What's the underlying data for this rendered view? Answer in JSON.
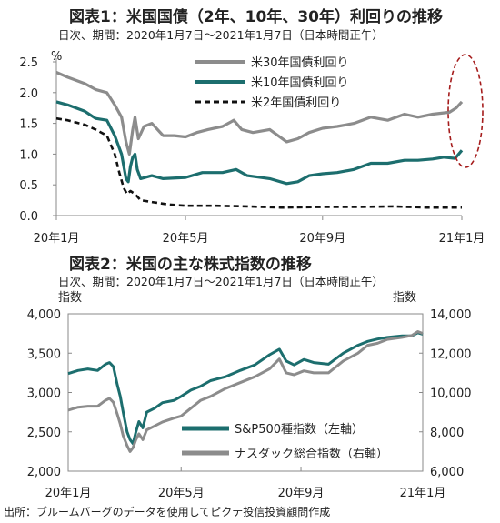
{
  "figure1": {
    "title": "図表1：米国国債（2年、10年、30年）利回りの推移",
    "period": "日次、期間：2020年1月7日～2021年1月7日（日本時間正午）"
  },
  "figure2": {
    "title": "図表2：米国の主な株式指数の推移",
    "period": "日次、期間：2020年1月7日～2021年1月7日（日本時間正午）",
    "left_axis_label": "指数",
    "right_axis_label": "指数"
  },
  "source": "出所：ブルームバーグのデータを使用してピクテ投信投資顧問作成",
  "chart_data": [
    {
      "type": "line",
      "unit": "%",
      "x_tick_labels": [
        "20年1月",
        "20年5月",
        "20年9月",
        "21年1月"
      ],
      "x_ticks_day": [
        0,
        115,
        237,
        361
      ],
      "ylim": [
        0,
        2.5
      ],
      "y_ticks": [
        "0.0",
        "0.5",
        "1.0",
        "1.5",
        "2.0",
        "2.5"
      ],
      "legend_position": "top-right",
      "highlight": "dashed red ellipse around the latest values (Jan 2021)",
      "series": [
        {
          "name": "米30年国債利回り",
          "color": "#8c8c8c",
          "style": "solid",
          "points": [
            [
              0,
              2.33
            ],
            [
              10,
              2.25
            ],
            [
              25,
              2.15
            ],
            [
              35,
              2.05
            ],
            [
              45,
              2.0
            ],
            [
              52,
              1.8
            ],
            [
              58,
              1.6
            ],
            [
              62,
              1.2
            ],
            [
              65,
              1.0
            ],
            [
              68,
              1.4
            ],
            [
              70,
              1.6
            ],
            [
              73,
              1.25
            ],
            [
              78,
              1.45
            ],
            [
              85,
              1.5
            ],
            [
              95,
              1.3
            ],
            [
              105,
              1.3
            ],
            [
              115,
              1.28
            ],
            [
              125,
              1.35
            ],
            [
              135,
              1.4
            ],
            [
              148,
              1.45
            ],
            [
              158,
              1.55
            ],
            [
              165,
              1.4
            ],
            [
              175,
              1.35
            ],
            [
              190,
              1.4
            ],
            [
              205,
              1.2
            ],
            [
              215,
              1.25
            ],
            [
              225,
              1.35
            ],
            [
              237,
              1.42
            ],
            [
              250,
              1.45
            ],
            [
              265,
              1.5
            ],
            [
              280,
              1.6
            ],
            [
              295,
              1.55
            ],
            [
              310,
              1.65
            ],
            [
              322,
              1.6
            ],
            [
              335,
              1.65
            ],
            [
              350,
              1.68
            ],
            [
              356,
              1.75
            ],
            [
              361,
              1.85
            ]
          ]
        },
        {
          "name": "米10年国債利回り",
          "color": "#1c6e6e",
          "style": "solid",
          "points": [
            [
              0,
              1.85
            ],
            [
              10,
              1.8
            ],
            [
              25,
              1.7
            ],
            [
              35,
              1.58
            ],
            [
              45,
              1.55
            ],
            [
              52,
              1.3
            ],
            [
              58,
              1.0
            ],
            [
              62,
              0.6
            ],
            [
              64,
              0.55
            ],
            [
              66,
              0.8
            ],
            [
              68,
              0.95
            ],
            [
              70,
              1.0
            ],
            [
              72,
              0.75
            ],
            [
              75,
              0.6
            ],
            [
              85,
              0.65
            ],
            [
              95,
              0.6
            ],
            [
              115,
              0.62
            ],
            [
              130,
              0.7
            ],
            [
              148,
              0.7
            ],
            [
              160,
              0.75
            ],
            [
              170,
              0.65
            ],
            [
              190,
              0.6
            ],
            [
              205,
              0.52
            ],
            [
              215,
              0.55
            ],
            [
              225,
              0.65
            ],
            [
              237,
              0.68
            ],
            [
              250,
              0.7
            ],
            [
              265,
              0.75
            ],
            [
              280,
              0.85
            ],
            [
              295,
              0.85
            ],
            [
              310,
              0.9
            ],
            [
              322,
              0.9
            ],
            [
              335,
              0.92
            ],
            [
              345,
              0.95
            ],
            [
              355,
              0.93
            ],
            [
              361,
              1.06
            ]
          ]
        },
        {
          "name": "米2年国債利回り",
          "color": "#111111",
          "style": "dashed",
          "points": [
            [
              0,
              1.58
            ],
            [
              10,
              1.55
            ],
            [
              25,
              1.48
            ],
            [
              35,
              1.4
            ],
            [
              45,
              1.3
            ],
            [
              52,
              1.0
            ],
            [
              56,
              0.7
            ],
            [
              60,
              0.45
            ],
            [
              63,
              0.35
            ],
            [
              66,
              0.4
            ],
            [
              70,
              0.35
            ],
            [
              75,
              0.25
            ],
            [
              85,
              0.22
            ],
            [
              100,
              0.18
            ],
            [
              115,
              0.16
            ],
            [
              140,
              0.16
            ],
            [
              170,
              0.15
            ],
            [
              200,
              0.13
            ],
            [
              237,
              0.14
            ],
            [
              270,
              0.14
            ],
            [
              300,
              0.15
            ],
            [
              330,
              0.13
            ],
            [
              361,
              0.13
            ]
          ]
        }
      ]
    },
    {
      "type": "line",
      "x_tick_labels": [
        "20年1月",
        "20年5月",
        "20年9月",
        "21年1月"
      ],
      "x_ticks_day": [
        0,
        115,
        237,
        361
      ],
      "left_ylim": [
        2000,
        4000
      ],
      "left_y_ticks": [
        "2,000",
        "2,500",
        "3,000",
        "3,500",
        "4,000"
      ],
      "right_ylim": [
        6000,
        14000
      ],
      "right_y_ticks": [
        "6,000",
        "8,000",
        "10,000",
        "12,000",
        "14,000"
      ],
      "legend_position": "bottom-right",
      "series": [
        {
          "name": "S&P500種指数（左軸）",
          "axis": "left",
          "color": "#1c6e6e",
          "points": [
            [
              0,
              3240
            ],
            [
              10,
              3280
            ],
            [
              20,
              3300
            ],
            [
              30,
              3280
            ],
            [
              38,
              3360
            ],
            [
              42,
              3380
            ],
            [
              46,
              3330
            ],
            [
              50,
              3100
            ],
            [
              53,
              2950
            ],
            [
              56,
              2750
            ],
            [
              60,
              2500
            ],
            [
              63,
              2400
            ],
            [
              66,
              2350
            ],
            [
              69,
              2500
            ],
            [
              72,
              2630
            ],
            [
              76,
              2550
            ],
            [
              80,
              2750
            ],
            [
              88,
              2800
            ],
            [
              96,
              2870
            ],
            [
              108,
              2900
            ],
            [
              115,
              2950
            ],
            [
              125,
              3030
            ],
            [
              135,
              3080
            ],
            [
              145,
              3150
            ],
            [
              160,
              3200
            ],
            [
              175,
              3280
            ],
            [
              190,
              3350
            ],
            [
              205,
              3480
            ],
            [
              215,
              3550
            ],
            [
              222,
              3400
            ],
            [
              230,
              3350
            ],
            [
              240,
              3420
            ],
            [
              250,
              3380
            ],
            [
              265,
              3360
            ],
            [
              280,
              3500
            ],
            [
              295,
              3600
            ],
            [
              305,
              3650
            ],
            [
              315,
              3680
            ],
            [
              325,
              3700
            ],
            [
              340,
              3720
            ],
            [
              350,
              3720
            ],
            [
              356,
              3760
            ],
            [
              361,
              3740
            ]
          ]
        },
        {
          "name": "ナスダック総合指数（右軸）",
          "axis": "right",
          "color": "#8c8c8c",
          "points": [
            [
              0,
              9100
            ],
            [
              10,
              9250
            ],
            [
              20,
              9300
            ],
            [
              30,
              9300
            ],
            [
              38,
              9600
            ],
            [
              42,
              9700
            ],
            [
              46,
              9500
            ],
            [
              50,
              8900
            ],
            [
              53,
              8400
            ],
            [
              56,
              7800
            ],
            [
              60,
              7300
            ],
            [
              63,
              7000
            ],
            [
              66,
              7200
            ],
            [
              69,
              7600
            ],
            [
              72,
              7900
            ],
            [
              76,
              7600
            ],
            [
              80,
              8100
            ],
            [
              88,
              8300
            ],
            [
              96,
              8500
            ],
            [
              108,
              8700
            ],
            [
              115,
              8800
            ],
            [
              125,
              9200
            ],
            [
              135,
              9600
            ],
            [
              145,
              9800
            ],
            [
              160,
              10200
            ],
            [
              175,
              10500
            ],
            [
              190,
              10800
            ],
            [
              205,
              11200
            ],
            [
              215,
              11700
            ],
            [
              222,
              11000
            ],
            [
              230,
              10900
            ],
            [
              240,
              11100
            ],
            [
              250,
              11000
            ],
            [
              265,
              11000
            ],
            [
              280,
              11600
            ],
            [
              295,
              12000
            ],
            [
              305,
              12400
            ],
            [
              315,
              12500
            ],
            [
              325,
              12700
            ],
            [
              340,
              12800
            ],
            [
              350,
              12900
            ],
            [
              356,
              13100
            ],
            [
              361,
              13000
            ]
          ]
        }
      ]
    }
  ]
}
